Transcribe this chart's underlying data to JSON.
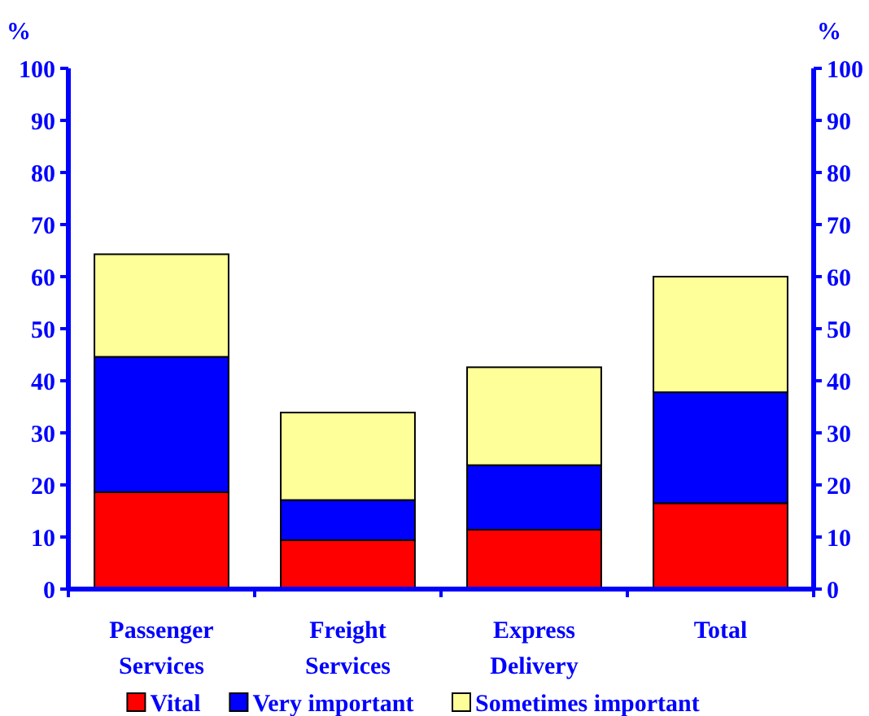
{
  "chart_data": {
    "type": "bar",
    "stacked": true,
    "categories": [
      "Passenger Services",
      "Freight Services",
      "Express Delivery",
      "Total"
    ],
    "series": [
      {
        "name": "Vital",
        "color": "#ff0000",
        "values": [
          18.6,
          9.4,
          11.4,
          16.5
        ]
      },
      {
        "name": "Very important",
        "color": "#0000ff",
        "values": [
          26.0,
          7.7,
          12.4,
          21.3
        ]
      },
      {
        "name": "Sometimes important",
        "color": "#ffff99",
        "values": [
          19.7,
          16.8,
          18.8,
          22.2
        ]
      }
    ],
    "ylabel": "%",
    "y2label": "%",
    "ylim": [
      0,
      100
    ],
    "yticks": [
      0,
      10,
      20,
      30,
      40,
      50,
      60,
      70,
      80,
      90,
      100
    ],
    "y2lim": [
      0,
      100
    ],
    "y2ticks": [
      0,
      10,
      20,
      30,
      40,
      50,
      60,
      70,
      80,
      90,
      100
    ],
    "legend": "bottom",
    "grid": false
  }
}
